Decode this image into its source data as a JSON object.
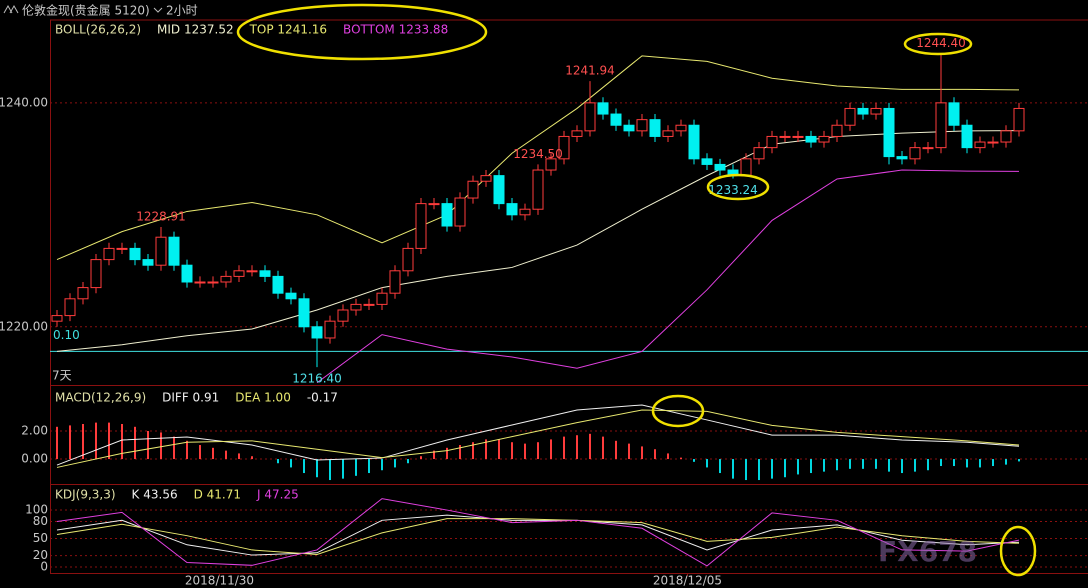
{
  "header": {
    "title": "伦敦金现(贵金属 5120)",
    "period": "2小时",
    "watermark": "FX678"
  },
  "chart_data": [
    {
      "type": "candlestick",
      "title": "BOLL(26,26,2)",
      "up_color": "#ff3c3c",
      "down_color": "#00f0f0",
      "ylim": [
        1214.8,
        1247.4
      ],
      "yticks": [
        {
          "value": 1220,
          "label": "1220.00"
        },
        {
          "value": 1240,
          "label": "1240.00"
        }
      ],
      "open": [
        1220.5,
        1221,
        1222.5,
        1223.5,
        1226,
        1227,
        1227,
        1226,
        1225.5,
        1228,
        1225.5,
        1224,
        1224,
        1224,
        1224.5,
        1225,
        1225,
        1224.5,
        1223,
        1222.5,
        1220,
        1219,
        1220.5,
        1221.5,
        1222,
        1222,
        1223,
        1225,
        1227,
        1231,
        1231,
        1229,
        1231.5,
        1233,
        1233.5,
        1231,
        1230,
        1230.5,
        1234,
        1235,
        1237,
        1237.5,
        1240,
        1239,
        1238,
        1237.5,
        1238.5,
        1237,
        1237.5,
        1238,
        1235,
        1234.5,
        1234,
        1233.5,
        1235,
        1236,
        1237,
        1237,
        1237,
        1236.5,
        1237,
        1238,
        1239.5,
        1239,
        1239.5,
        1235.2,
        1235,
        1236,
        1236,
        1240,
        1238,
        1236,
        1236.5,
        1236.5,
        1237.5
      ],
      "high": [
        1221.5,
        1223,
        1224,
        1226.5,
        1227.5,
        1227.5,
        1227.5,
        1226.5,
        1228.91,
        1228.5,
        1226,
        1224.5,
        1224.5,
        1225,
        1225.5,
        1225.5,
        1225.5,
        1225,
        1223.5,
        1223,
        1220.5,
        1221,
        1222,
        1222.5,
        1222.5,
        1223.5,
        1225.5,
        1227.5,
        1231.5,
        1231.5,
        1231.5,
        1232,
        1233.5,
        1234,
        1234,
        1231.5,
        1231,
        1234.5,
        1235.5,
        1237.5,
        1238,
        1241.94,
        1240.5,
        1239.5,
        1238.5,
        1239,
        1239,
        1238,
        1238.5,
        1238.5,
        1235.5,
        1235,
        1234.5,
        1235.5,
        1236.5,
        1237.5,
        1237.5,
        1237.5,
        1237.5,
        1237.5,
        1238.5,
        1240,
        1240,
        1240,
        1240,
        1235.7,
        1236.5,
        1236.5,
        1244.4,
        1240.5,
        1238.5,
        1237,
        1237,
        1238,
        1240
      ],
      "low": [
        1220,
        1220.5,
        1222,
        1223,
        1225.5,
        1226.5,
        1225.5,
        1225,
        1225,
        1225,
        1223.5,
        1223.5,
        1223.5,
        1223.5,
        1224,
        1224.5,
        1224,
        1222.5,
        1222,
        1219.5,
        1216.4,
        1218.5,
        1220,
        1221,
        1221.5,
        1221.5,
        1222.5,
        1224.5,
        1226.5,
        1230.5,
        1228.5,
        1228.5,
        1231,
        1232.5,
        1230.5,
        1229.5,
        1229.5,
        1230,
        1233.5,
        1234.5,
        1236.5,
        1237,
        1238.5,
        1237.5,
        1237,
        1237,
        1236.5,
        1236.5,
        1237,
        1234.5,
        1234,
        1233.5,
        1233.24,
        1233.5,
        1234.5,
        1235.5,
        1236.5,
        1236.5,
        1236,
        1236,
        1236.5,
        1237.5,
        1238.5,
        1238.5,
        1234.5,
        1234.5,
        1234.5,
        1235.5,
        1235.5,
        1237.5,
        1235.5,
        1235.5,
        1236,
        1236,
        1237
      ],
      "close": [
        1221,
        1222.5,
        1223.5,
        1226,
        1227,
        1227,
        1226,
        1225.5,
        1228,
        1225.5,
        1224,
        1224,
        1224,
        1224.5,
        1225,
        1225,
        1224.5,
        1223,
        1222.5,
        1220,
        1219,
        1220.5,
        1221.5,
        1222,
        1222,
        1223,
        1225,
        1227,
        1231,
        1231,
        1229,
        1231.5,
        1233,
        1233.5,
        1231,
        1230,
        1230.5,
        1234,
        1235,
        1237,
        1237.5,
        1240,
        1239,
        1238,
        1237.5,
        1238.5,
        1237,
        1237.5,
        1238,
        1235,
        1234.5,
        1234,
        1233.5,
        1235,
        1236,
        1237,
        1237,
        1237,
        1236.5,
        1237,
        1238,
        1239.5,
        1239,
        1239.5,
        1235.2,
        1235,
        1236,
        1236,
        1240,
        1238,
        1236,
        1236.5,
        1236.5,
        1237.5,
        1239.5
      ],
      "series": [
        {
          "name": "MID 1237.52",
          "color": "#f0f0d0",
          "x": [
            0,
            5,
            10,
            15,
            20,
            25,
            30,
            35,
            40,
            45,
            50,
            55,
            60,
            65,
            70,
            74
          ],
          "values": [
            1217.8,
            1218.4,
            1219.2,
            1219.8,
            1221.5,
            1223.5,
            1224.5,
            1225.3,
            1227.3,
            1230.5,
            1233.5,
            1236.3,
            1237,
            1237.3,
            1237.5,
            1237.52
          ]
        },
        {
          "name": "TOP 1241.16",
          "color": "#e8e870",
          "x": [
            0,
            5,
            10,
            15,
            20,
            25,
            30,
            35,
            40,
            45,
            50,
            55,
            60,
            65,
            70,
            74
          ],
          "values": [
            1226,
            1228.5,
            1230.3,
            1231.1,
            1230,
            1227.5,
            1230,
            1235.5,
            1239.5,
            1244.2,
            1243.7,
            1242.2,
            1241.5,
            1241.2,
            1241.2,
            1241.16
          ]
        },
        {
          "name": "BOTTOM 1233.88",
          "color": "#e040e0",
          "x": [
            0,
            5,
            10,
            15,
            20,
            25,
            30,
            35,
            40,
            45,
            50,
            55,
            60,
            65,
            70,
            74
          ],
          "values": [
            null,
            null,
            null,
            null,
            1215,
            1219.3,
            1218,
            1217.3,
            1216.3,
            1217.8,
            1223.3,
            1229.5,
            1233.2,
            1234,
            1233.9,
            1233.88
          ]
        }
      ],
      "annotations": [
        {
          "value": 1228.91,
          "label": "1228.91"
        },
        {
          "value": 1241.94,
          "label": "1241.94"
        },
        {
          "value": 1244.4,
          "label": "1244.40"
        },
        {
          "value": 1233.24,
          "label": "1233.24"
        },
        {
          "value": 1234.5,
          "label": "1234.50"
        },
        {
          "value": 1216.4,
          "label": "1216.40"
        }
      ],
      "hline": {
        "value": 1217.8,
        "label": "0.10",
        "color": "#40e0e0"
      },
      "range_label": "7天"
    },
    {
      "type": "macd",
      "title": "MACD(12,26,9)",
      "ylim": [
        -1.64,
        5.07
      ],
      "yticks": [
        {
          "value": 0,
          "label": "0.00"
        },
        {
          "value": 2,
          "label": "2.00"
        }
      ],
      "histogram": {
        "name": "-0.17",
        "up_color": "#ff3c3c",
        "down_color": "#00d8e0",
        "values": [
          2.3,
          2.4,
          2.5,
          2.6,
          2.6,
          2.5,
          2.3,
          2.0,
          1.9,
          1.6,
          1.3,
          1.0,
          0.8,
          0.6,
          0.4,
          0.2,
          0,
          -0.3,
          -0.6,
          -1.0,
          -1.3,
          -1.5,
          -1.4,
          -1.2,
          -1.0,
          -0.8,
          -0.6,
          -0.3,
          0.2,
          0.6,
          0.8,
          1.0,
          1.2,
          1.4,
          1.4,
          1.2,
          1.1,
          1.2,
          1.4,
          1.6,
          1.7,
          1.8,
          1.6,
          1.3,
          1.1,
          0.9,
          0.7,
          0.4,
          0.1,
          -0.2,
          -0.6,
          -1.0,
          -1.4,
          -1.5,
          -1.5,
          -1.4,
          -1.3,
          -1.1,
          -1.0,
          -0.9,
          -0.8,
          -0.7,
          -0.7,
          -0.7,
          -0.9,
          -1.0,
          -0.9,
          -0.8,
          -0.5,
          -0.5,
          -0.6,
          -0.6,
          -0.5,
          -0.4,
          -0.17
        ]
      },
      "series": [
        {
          "name": "DIFF 0.91",
          "color": "#f0f0f0",
          "x": [
            0,
            5,
            10,
            15,
            20,
            25,
            30,
            35,
            40,
            45,
            50,
            55,
            60,
            65,
            70,
            74
          ],
          "values": [
            -0.43,
            1.36,
            1.57,
            1.0,
            -0.07,
            0.07,
            1.36,
            2.43,
            3.5,
            3.86,
            2.79,
            1.71,
            1.71,
            1.36,
            1.2,
            0.91
          ]
        },
        {
          "name": "DEA 1.00",
          "color": "#e8e870",
          "x": [
            0,
            5,
            10,
            15,
            20,
            25,
            30,
            35,
            40,
            45,
            50,
            55,
            60,
            65,
            70,
            74
          ],
          "values": [
            -0.6,
            0.4,
            1.2,
            1.3,
            0.7,
            0.1,
            0.6,
            1.6,
            2.6,
            3.5,
            3.4,
            2.4,
            1.9,
            1.6,
            1.3,
            1.0
          ]
        }
      ]
    },
    {
      "type": "line",
      "title": "KDJ(9,3,3)",
      "ylim": [
        -10.5,
        144
      ],
      "yticks": [
        0,
        20,
        50,
        80,
        100
      ],
      "series": [
        {
          "name": "K 43.56",
          "color": "#f0f0f0",
          "x": [
            0,
            5,
            10,
            15,
            20,
            25,
            30,
            35,
            40,
            45,
            50,
            55,
            60,
            65,
            70,
            74
          ],
          "values": [
            65,
            82,
            39,
            21,
            25,
            82,
            91,
            82,
            82,
            74,
            30,
            65,
            74,
            47,
            39,
            43.56
          ]
        },
        {
          "name": "D 41.71",
          "color": "#e8e870",
          "x": [
            0,
            5,
            10,
            15,
            20,
            25,
            30,
            35,
            40,
            45,
            50,
            55,
            60,
            65,
            70,
            74
          ],
          "values": [
            57,
            75,
            55,
            30,
            22,
            60,
            85,
            85,
            82,
            78,
            45,
            52,
            70,
            55,
            45,
            41.71
          ]
        },
        {
          "name": "J 47.25",
          "color": "#e040e0",
          "x": [
            0,
            5,
            10,
            15,
            20,
            25,
            30,
            35,
            40,
            45,
            50,
            55,
            60,
            65,
            70,
            74
          ],
          "values": [
            80,
            96,
            8,
            3,
            30,
            120,
            100,
            78,
            82,
            68,
            2,
            95,
            82,
            30,
            28,
            47.25
          ]
        }
      ],
      "xticks": [
        {
          "value": 12.5,
          "label": "2018/11/30"
        },
        {
          "value": 48.5,
          "label": "2018/12/05"
        }
      ]
    }
  ]
}
